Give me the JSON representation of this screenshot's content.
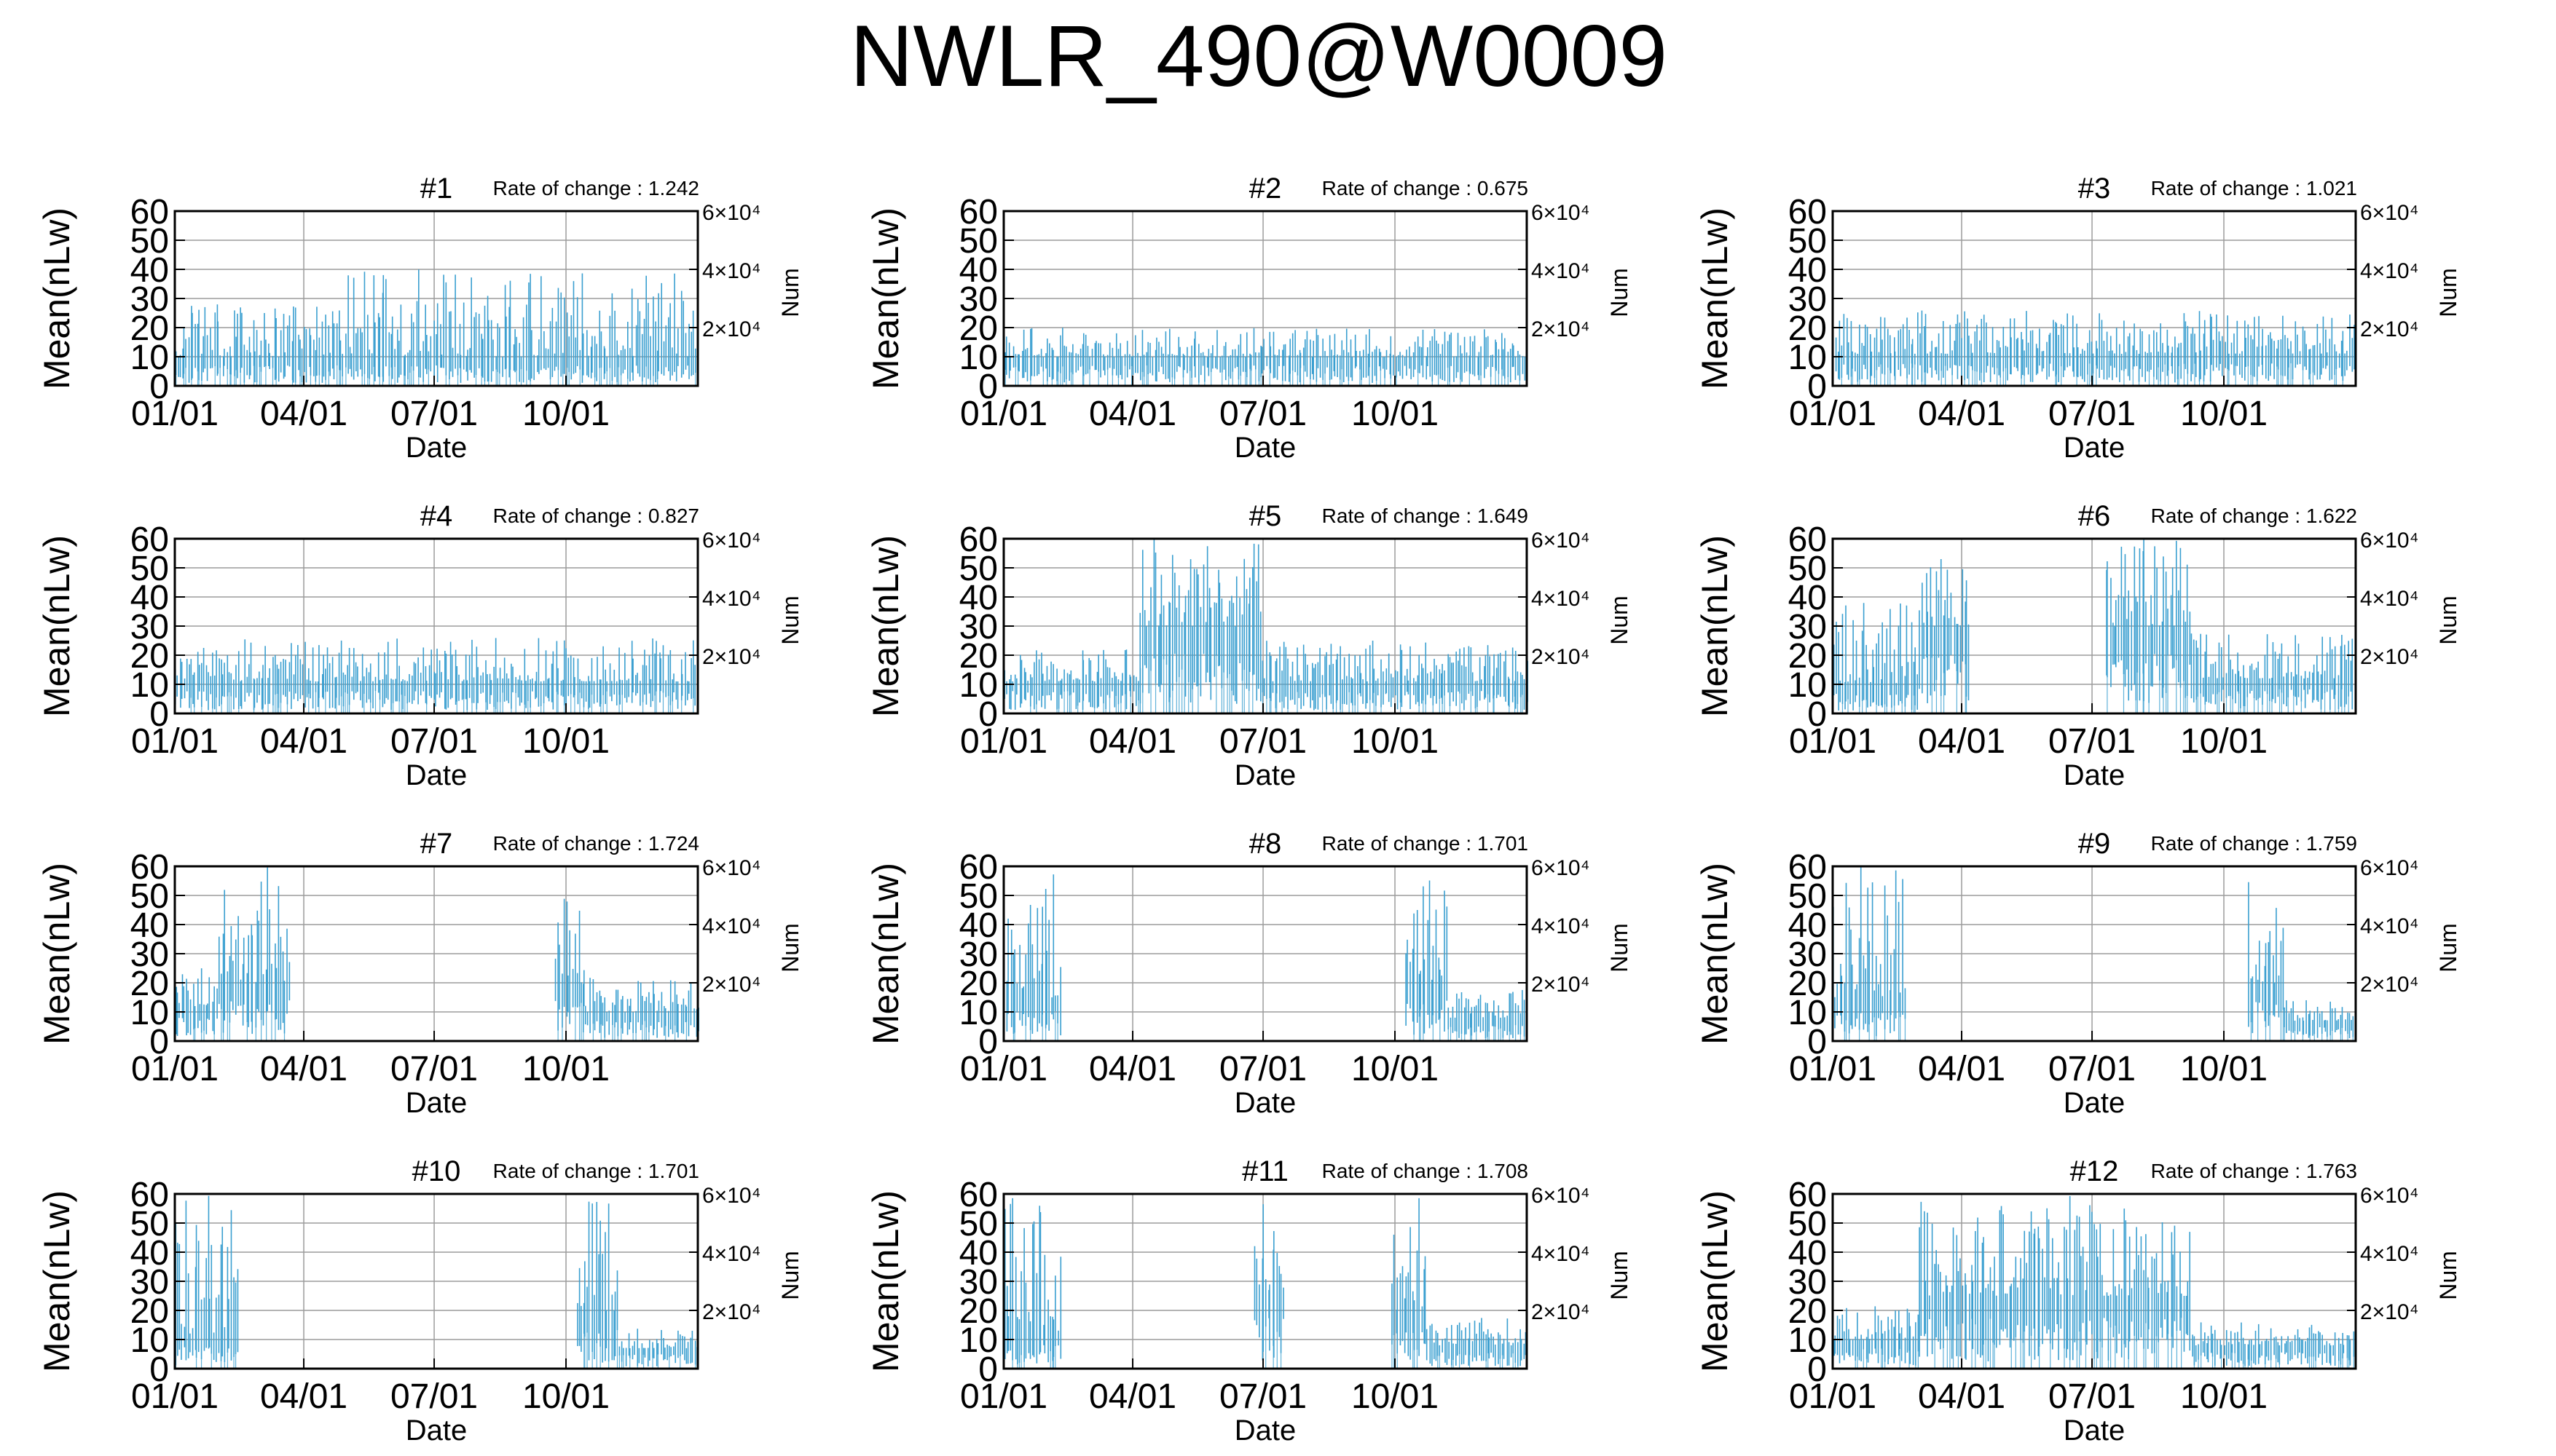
{
  "title": "NWLR_490@W0009",
  "colors": {
    "series": "#3a9fd0",
    "grid": "#9c9c9c",
    "axis": "#000000"
  },
  "shared_axes": {
    "ylabel_left": "Mean(nLw)",
    "ylabel_right": "Num",
    "xlabel": "Date",
    "ylim": [
      0,
      60
    ],
    "yticks": [
      "0",
      "10",
      "20",
      "30",
      "40",
      "50",
      "60"
    ],
    "y2ticks": [
      "2×10⁴",
      "4×10⁴",
      "6×10⁴"
    ],
    "xticks": [
      "01/01",
      "04/01",
      "07/01",
      "10/01"
    ],
    "xtick_days": [
      0,
      90,
      181,
      273
    ],
    "days_in_year": 365,
    "grid": true
  },
  "chart_data": [
    {
      "type": "bar",
      "panel": "#1",
      "rate_label": "Rate of change : 1.242",
      "clusters": [
        [
          0,
          120,
          10,
          28
        ],
        [
          120,
          365,
          10,
          40
        ]
      ]
    },
    {
      "type": "bar",
      "panel": "#2",
      "rate_label": "Rate of change : 0.675",
      "clusters": [
        [
          0,
          365,
          10,
          20
        ]
      ]
    },
    {
      "type": "bar",
      "panel": "#3",
      "rate_label": "Rate of change : 1.021",
      "clusters": [
        [
          0,
          365,
          11,
          26
        ]
      ]
    },
    {
      "type": "bar",
      "panel": "#4",
      "rate_label": "Rate of change : 0.827",
      "clusters": [
        [
          0,
          365,
          11,
          26
        ]
      ]
    },
    {
      "type": "bar",
      "panel": "#5",
      "rate_label": "Rate of change : 1.649",
      "clusters": [
        [
          0,
          95,
          11,
          22
        ],
        [
          95,
          180,
          30,
          60
        ],
        [
          180,
          365,
          11,
          25
        ]
      ]
    },
    {
      "type": "bar",
      "panel": "#6",
      "rate_label": "Rate of change : 1.622",
      "clusters": [
        [
          0,
          60,
          10,
          42
        ],
        [
          60,
          95,
          30,
          60
        ],
        [
          190,
          250,
          30,
          60
        ],
        [
          250,
          365,
          12,
          28
        ]
      ]
    },
    {
      "type": "bar",
      "panel": "#7",
      "rate_label": "Rate of change : 1.724",
      "clusters": [
        [
          0,
          30,
          12,
          25
        ],
        [
          30,
          80,
          20,
          60
        ],
        [
          265,
          285,
          20,
          60
        ],
        [
          285,
          365,
          10,
          22
        ]
      ]
    },
    {
      "type": "bar",
      "panel": "#8",
      "rate_label": "Rate of change : 1.701",
      "clusters": [
        [
          0,
          40,
          15,
          60
        ],
        [
          280,
          310,
          20,
          60
        ],
        [
          310,
          365,
          8,
          18
        ]
      ]
    },
    {
      "type": "bar",
      "panel": "#9",
      "rate_label": "Rate of change : 1.759",
      "clusters": [
        [
          0,
          50,
          15,
          60
        ],
        [
          290,
          315,
          20,
          60
        ],
        [
          315,
          365,
          7,
          15
        ]
      ]
    },
    {
      "type": "bar",
      "panel": "#10",
      "rate_label": "Rate of change : 1.701",
      "clusters": [
        [
          0,
          45,
          12,
          60
        ],
        [
          280,
          310,
          20,
          60
        ],
        [
          310,
          365,
          7,
          14
        ]
      ]
    },
    {
      "type": "bar",
      "panel": "#11",
      "rate_label": "Rate of change : 1.708",
      "clusters": [
        [
          0,
          40,
          12,
          60
        ],
        [
          175,
          195,
          25,
          60
        ],
        [
          270,
          295,
          20,
          60
        ],
        [
          295,
          365,
          8,
          18
        ]
      ]
    },
    {
      "type": "bar",
      "panel": "#12",
      "rate_label": "Rate of change : 1.763",
      "clusters": [
        [
          0,
          60,
          10,
          22
        ],
        [
          60,
          250,
          25,
          60
        ],
        [
          250,
          365,
          8,
          16
        ]
      ]
    }
  ]
}
